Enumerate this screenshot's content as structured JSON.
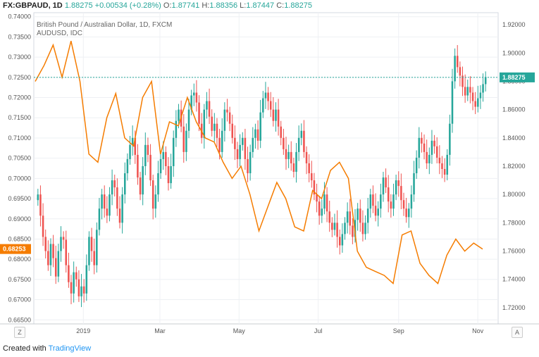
{
  "header": {
    "symbol": "FX:GBPAUD, 1D",
    "last": "1.88275",
    "change": "+0.00534 (+0.28%)",
    "o_label": "O:",
    "o": "1.87741",
    "h_label": "H:",
    "h": "1.88356",
    "l_label": "L:",
    "l": "1.87447",
    "c_label": "C:",
    "c": "1.88275"
  },
  "legend": {
    "main": "British Pound / Australian Dollar, 1D, FXCM",
    "overlay": "AUDUSD, IDC"
  },
  "footer": {
    "created": "Created with",
    "brand": "TradingView"
  },
  "axis_buttons": {
    "left": "Z",
    "right": "A"
  },
  "colors": {
    "up": "#26a69a",
    "down": "#ef5350",
    "overlay": "#f57c00",
    "lastline": "#26a69a",
    "grid": "#eef0f4"
  },
  "chart_data": {
    "type": "line",
    "xlabels": [
      "2019",
      "Mar",
      "May",
      "Jul",
      "Sep",
      "Nov"
    ],
    "left_axis": {
      "ticks": [
        "0.74000",
        "0.73500",
        "0.73000",
        "0.72500",
        "0.72000",
        "0.71500",
        "0.71000",
        "0.70500",
        "0.70000",
        "0.69500",
        "0.69000",
        "0.68500",
        "0.68000",
        "0.67500",
        "0.67000",
        "0.66500"
      ],
      "range": [
        0.664,
        0.741
      ],
      "current": "0.68253"
    },
    "right_axis": {
      "ticks": [
        "1.92000",
        "1.90000",
        "1.88000",
        "1.86000",
        "1.84000",
        "1.82000",
        "1.80000",
        "1.78000",
        "1.76000",
        "1.74000",
        "1.72000"
      ],
      "range": [
        1.7085,
        1.9285
      ],
      "current": "1.88275"
    },
    "series": [
      {
        "name": "GBPAUD",
        "type": "candlestick",
        "x_start": "2018-11-26",
        "x_end": "2019-11-08",
        "close": [
          1.8,
          1.785,
          1.77,
          1.76,
          1.75,
          1.765,
          1.755,
          1.742,
          1.76,
          1.77,
          1.768,
          1.75,
          1.738,
          1.73,
          1.745,
          1.74,
          1.728,
          1.735,
          1.73,
          1.75,
          1.77,
          1.76,
          1.75,
          1.775,
          1.79,
          1.8,
          1.79,
          1.785,
          1.8,
          1.81,
          1.805,
          1.79,
          1.78,
          1.8,
          1.815,
          1.825,
          1.835,
          1.84,
          1.828,
          1.812,
          1.8,
          1.82,
          1.835,
          1.828,
          1.81,
          1.79,
          1.8,
          1.815,
          1.825,
          1.83,
          1.82,
          1.808,
          1.82,
          1.84,
          1.852,
          1.86,
          1.848,
          1.83,
          1.845,
          1.86,
          1.87,
          1.872,
          1.865,
          1.85,
          1.84,
          1.86,
          1.866,
          1.855,
          1.845,
          1.85,
          1.84,
          1.83,
          1.845,
          1.86,
          1.858,
          1.85,
          1.84,
          1.832,
          1.825,
          1.835,
          1.84,
          1.825,
          1.815,
          1.83,
          1.84,
          1.846,
          1.838,
          1.858,
          1.868,
          1.872,
          1.866,
          1.86,
          1.852,
          1.86,
          1.848,
          1.84,
          1.832,
          1.825,
          1.83,
          1.822,
          1.816,
          1.83,
          1.84,
          1.845,
          1.83,
          1.822,
          1.815,
          1.81,
          1.8,
          1.795,
          1.785,
          1.79,
          1.8,
          1.788,
          1.78,
          1.775,
          1.78,
          1.77,
          1.764,
          1.772,
          1.78,
          1.788,
          1.778,
          1.77,
          1.782,
          1.79,
          1.78,
          1.772,
          1.78,
          1.79,
          1.8,
          1.792,
          1.785,
          1.79,
          1.8,
          1.812,
          1.805,
          1.795,
          1.79,
          1.8,
          1.81,
          1.806,
          1.796,
          1.79,
          1.784,
          1.79,
          1.8,
          1.815,
          1.826,
          1.84,
          1.836,
          1.83,
          1.822,
          1.828,
          1.838,
          1.834,
          1.826,
          1.822,
          1.818,
          1.814,
          1.828,
          1.85,
          1.88,
          1.898,
          1.89,
          1.884,
          1.876,
          1.87,
          1.876,
          1.872,
          1.866,
          1.862,
          1.868,
          1.872,
          1.878,
          1.883
        ]
      },
      {
        "name": "AUDUSD",
        "type": "line",
        "x": [
          0.0,
          0.02,
          0.04,
          0.06,
          0.08,
          0.1,
          0.12,
          0.14,
          0.16,
          0.18,
          0.2,
          0.22,
          0.24,
          0.26,
          0.28,
          0.3,
          0.32,
          0.34,
          0.36,
          0.38,
          0.4,
          0.42,
          0.44,
          0.46,
          0.48,
          0.5,
          0.52,
          0.54,
          0.56,
          0.58,
          0.6,
          0.62,
          0.64,
          0.66,
          0.68,
          0.7,
          0.72,
          0.74,
          0.76,
          0.78,
          0.8,
          0.82,
          0.84,
          0.86,
          0.88,
          0.9,
          0.92,
          0.94,
          0.96,
          0.98,
          1.0
        ],
        "y": [
          0.724,
          0.728,
          0.733,
          0.725,
          0.734,
          0.724,
          0.706,
          0.704,
          0.715,
          0.721,
          0.71,
          0.708,
          0.72,
          0.724,
          0.706,
          0.714,
          0.713,
          0.72,
          0.714,
          0.71,
          0.709,
          0.704,
          0.7,
          0.703,
          0.696,
          0.687,
          0.693,
          0.699,
          0.695,
          0.688,
          0.687,
          0.697,
          0.695,
          0.702,
          0.704,
          0.7,
          0.682,
          0.678,
          0.677,
          0.676,
          0.674,
          0.686,
          0.687,
          0.679,
          0.676,
          0.674,
          0.681,
          0.685,
          0.682,
          0.684,
          0.6825
        ]
      }
    ]
  }
}
